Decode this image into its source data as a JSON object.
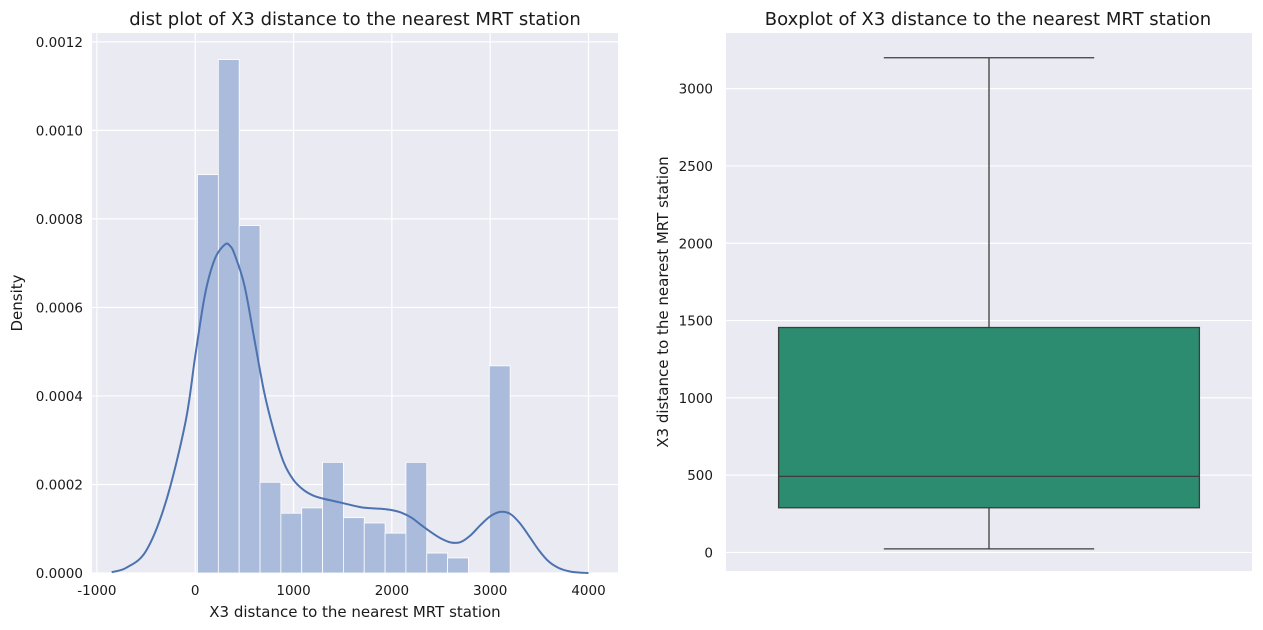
{
  "chart_data": [
    {
      "type": "histogram",
      "title": "dist plot of X3 distance to the nearest MRT station",
      "xlabel": "X3 distance to the nearest MRT station",
      "ylabel": "Density",
      "xlim": [
        -1050,
        4300
      ],
      "ylim": [
        0,
        0.00122
      ],
      "xticks": [
        -1000,
        0,
        1000,
        2000,
        3000,
        4000
      ],
      "yticks": [
        0.0,
        0.0002,
        0.0004,
        0.0006,
        0.0008,
        0.001,
        0.0012
      ],
      "ytick_labels": [
        "0.0000",
        "0.0002",
        "0.0004",
        "0.0006",
        "0.0008",
        "0.0010",
        "0.0012"
      ],
      "grid": true,
      "bin_edges": [
        23,
        235,
        447,
        659,
        871,
        1083,
        1295,
        1507,
        1719,
        1931,
        2143,
        2355,
        2567,
        2779,
        2991,
        3203
      ],
      "densities": [
        0.0009,
        0.00116,
        0.000785,
        0.000205,
        0.000135,
        0.000147,
        0.00025,
        0.000125,
        0.000113,
        9e-05,
        0.00025,
        4.5e-05,
        3.4e-05,
        0.0,
        0.000468
      ],
      "kde": {
        "x": [
          -850,
          -700,
          -500,
          -300,
          -100,
          0,
          100,
          200,
          300,
          350,
          400,
          500,
          600,
          700,
          800,
          900,
          1000,
          1100,
          1200,
          1300,
          1400,
          1500,
          1700,
          1900,
          2000,
          2100,
          2200,
          2300,
          2400,
          2500,
          2600,
          2700,
          2800,
          2900,
          3000,
          3100,
          3200,
          3300,
          3400,
          3500,
          3600,
          3700,
          3800,
          3900,
          4000
        ],
        "y": [
          2e-06,
          1.2e-05,
          5e-05,
          0.00016,
          0.00034,
          0.00049,
          0.00063,
          0.00071,
          0.000742,
          0.00074,
          0.00072,
          0.00065,
          0.00053,
          0.00041,
          0.00032,
          0.00025,
          0.00021,
          0.000188,
          0.000175,
          0.000168,
          0.000163,
          0.000158,
          0.000148,
          0.000145,
          0.000142,
          0.000136,
          0.000125,
          0.000108,
          9.2e-05,
          7.8e-05,
          6.9e-05,
          7e-05,
          8.5e-05,
          0.000108,
          0.000128,
          0.000138,
          0.000134,
          0.000113,
          8.2e-05,
          5e-05,
          2.5e-05,
          1.1e-05,
          4e-06,
          1e-06,
          0.0
        ]
      },
      "colors": {
        "bars": "#a6b8d9",
        "kde": "#4c72b0"
      }
    },
    {
      "type": "box",
      "title": "Boxplot of X3 distance to the nearest MRT station",
      "ylabel": "X3 distance to the nearest MRT station",
      "ylim": [
        -120,
        3360
      ],
      "yticks": [
        0,
        500,
        1000,
        1500,
        2000,
        2500,
        3000
      ],
      "grid": true,
      "stats": {
        "min": 23,
        "q1": 289,
        "median": 492,
        "q3": 1455,
        "max": 3200
      },
      "colors": {
        "box": "#2b8c6f"
      }
    }
  ]
}
